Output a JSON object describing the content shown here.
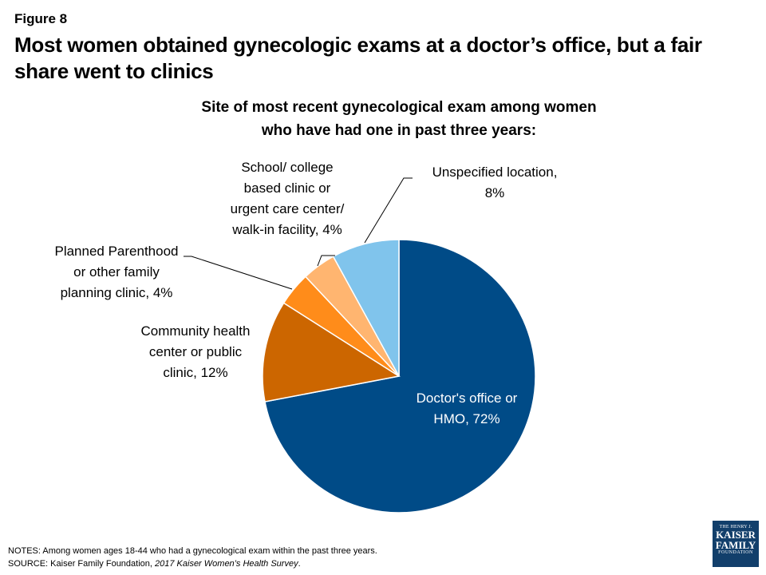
{
  "figure_label": "Figure 8",
  "headline": "Most women obtained gynecologic exams at a doctor’s office, but a fair share went to clinics",
  "chart_data": {
    "type": "pie",
    "title": "Site of most recent gynecological exam among women who have had one in past three years:",
    "title_lines": [
      "Site of most recent gynecological exam among women",
      "who have had one in past three years:"
    ],
    "slices": [
      {
        "label": "Doctor's office or HMO, 72%",
        "label_lines": [
          "Doctor's office or",
          "HMO, 72%"
        ],
        "value": 72,
        "color": "#004b87"
      },
      {
        "label": "Community health center or public clinic, 12%",
        "label_lines": [
          "Community health",
          "center or public",
          "clinic, 12%"
        ],
        "value": 12,
        "color": "#cc6600"
      },
      {
        "label": "Planned Parenthood or other family planning clinic, 4%",
        "label_lines": [
          "Planned Parenthood",
          "or other family",
          "planning clinic, 4%"
        ],
        "value": 4,
        "color": "#ff8c1a"
      },
      {
        "label": "School/ college based clinic or urgent care center/ walk-in facility, 4%",
        "label_lines": [
          "School/ college",
          "based clinic or",
          "urgent care center/",
          "walk-in facility, 4%"
        ],
        "value": 4,
        "color": "#ffb570"
      },
      {
        "label": "Unspecified location, 8%",
        "label_lines": [
          "Unspecified location,",
          "8%"
        ],
        "value": 8,
        "color": "#80c4ec"
      }
    ]
  },
  "notes": {
    "notes_text": "NOTES:  Among women  ages 18-44 who had a gynecological exam within the past three  years.",
    "source_prefix": "SOURCE:  Kaiser Family Foundation, ",
    "source_italic": "2017 Kaiser Women’s Health Survey",
    "source_suffix": "."
  },
  "logo": {
    "line1": "THE HENRY J.",
    "line2": "KAISER",
    "line3": "FAMILY",
    "line4": "FOUNDATION"
  }
}
